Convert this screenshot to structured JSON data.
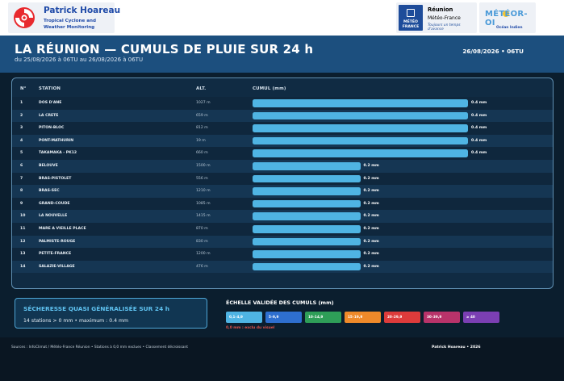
{
  "brand": {
    "name": "Patrick Hoareau",
    "subtitle": "Tropical Cyclone and Weather Monitoring"
  },
  "meteofrance": {
    "logo_text": "MÉTÉO FRANCE",
    "line1": "Réunion",
    "line2": "Météo-France",
    "tagline": "Toujours un temps d'avance"
  },
  "meteooi": {
    "name": "MÉTÉOR-OI",
    "sub": "Océan Indien"
  },
  "header": {
    "title": "LA RÉUNION — CUMULS DE PLUIE SUR 24 h",
    "subtitle": "du 25/08/2026 à 06TU au 26/08/2026 à 06TU",
    "date": "26/08/2026 • 06TU"
  },
  "table": {
    "headers": {
      "num": "N°",
      "station": "STATION",
      "alt": "ALT.",
      "cumul": "CUMUL (mm)"
    },
    "max_value": 0.4,
    "rows": [
      {
        "num": "1",
        "station": "DOS D'ANE",
        "alt": "1027 m",
        "value": 0.4,
        "label": "0.4 mm"
      },
      {
        "num": "2",
        "station": "LA CRETE",
        "alt": "659 m",
        "value": 0.4,
        "label": "0.4 mm"
      },
      {
        "num": "3",
        "station": "PITON-BLOC",
        "alt": "812 m",
        "value": 0.4,
        "label": "0.4 mm"
      },
      {
        "num": "4",
        "station": "PONT-MATHURIN",
        "alt": "19 m",
        "value": 0.4,
        "label": "0.4 mm"
      },
      {
        "num": "5",
        "station": "TAKAMAKA - PK12",
        "alt": "660 m",
        "value": 0.4,
        "label": "0.4 mm"
      },
      {
        "num": "6",
        "station": "BELOUVE",
        "alt": "1500 m",
        "value": 0.2,
        "label": "0.2 mm"
      },
      {
        "num": "7",
        "station": "BRAS-PISTOLET",
        "alt": "556 m",
        "value": 0.2,
        "label": "0.2 mm"
      },
      {
        "num": "8",
        "station": "BRAS-SEC",
        "alt": "1210 m",
        "value": 0.2,
        "label": "0.2 mm"
      },
      {
        "num": "9",
        "station": "GRAND-COUDE",
        "alt": "1085 m",
        "value": 0.2,
        "label": "0.2 mm"
      },
      {
        "num": "10",
        "station": "LA NOUVELLE",
        "alt": "1415 m",
        "value": 0.2,
        "label": "0.2 mm"
      },
      {
        "num": "11",
        "station": "MARE A VIEILLE PLACE",
        "alt": "870 m",
        "value": 0.2,
        "label": "0.2 mm"
      },
      {
        "num": "12",
        "station": "PALMISTE-ROUGE",
        "alt": "830 m",
        "value": 0.2,
        "label": "0.2 mm"
      },
      {
        "num": "13",
        "station": "PETITE-FRANCE",
        "alt": "1200 m",
        "value": 0.2,
        "label": "0.2 mm"
      },
      {
        "num": "14",
        "station": "SALAZIE-VILLAGE",
        "alt": "476 m",
        "value": 0.2,
        "label": "0.2 mm"
      }
    ]
  },
  "summary": {
    "title": "SÉCHERESSE QUASI GÉNÉRALISÉE SUR 24 h",
    "details": "14 stations > 0 mm  •  maximum : 0.4 mm"
  },
  "legend": {
    "title": "ÉCHELLE VALIDÉE DES CUMULS (mm)",
    "items": [
      {
        "label": "0,1–4,9",
        "color": "#4fb4e3"
      },
      {
        "label": "5–9,9",
        "color": "#2e6fcf"
      },
      {
        "label": "10–14,9",
        "color": "#2e9e58"
      },
      {
        "label": "15–19,9",
        "color": "#ef8a2a"
      },
      {
        "label": "20–29,9",
        "color": "#dd3b3b"
      },
      {
        "label": "30–39,9",
        "color": "#b8336a"
      },
      {
        "label": "≥ 40",
        "color": "#7b3fb3"
      }
    ],
    "note": "0,0 mm : exclu du visuel"
  },
  "footer": {
    "left": "Sources : InfoClimat / Météo-France Réunion • Stations à 0,0 mm exclues • Classement décroissant",
    "right": "Patrick Hoareau • 2026"
  },
  "colors": {
    "bar": "#4fb4e3",
    "header_band": "#1c4f7e",
    "background": "#0b1e2e"
  }
}
